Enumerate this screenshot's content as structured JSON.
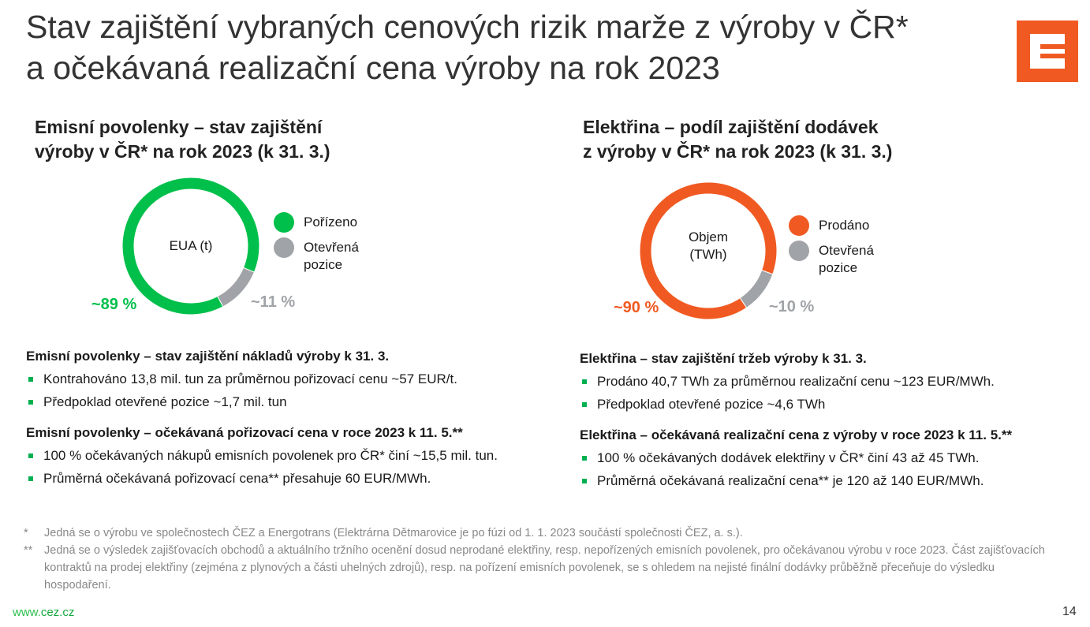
{
  "title": [
    "Stav zajištění vybraných cenových rizik marže z výroby v ČR*",
    "a očekávaná realizační cena výroby na rok 2023"
  ],
  "logo": {
    "name": "cez-logo",
    "color": "#f05a22"
  },
  "colors": {
    "green": "#00c04b",
    "orange": "#f05a22",
    "gray": "#a0a3a7"
  },
  "left": {
    "subtitle": [
      "Emisní povolenky – stav zajištění",
      "výroby v ČR* na rok 2023 (k 31. 3.)"
    ],
    "sections": [
      {
        "heading": "Emisní povolenky – stav zajištění nákladů výroby k 31. 3.",
        "bullets": [
          "Kontrahováno 13,8 mil. tun za průměrnou pořizovací cenu ~57 EUR/t.",
          "Předpoklad otevřené pozice ~1,7 mil. tun"
        ]
      },
      {
        "heading": "Emisní povolenky – očekávaná pořizovací cena v roce 2023 k 11. 5.**",
        "bullets": [
          "100 % očekávaných nákupů emisních povolenek pro ČR* činí ~15,5 mil. tun.",
          "Průměrná očekávaná pořizovací cena** přesahuje 60 EUR/MWh."
        ]
      }
    ]
  },
  "right": {
    "subtitle": [
      "Elektřina – podíl zajištění dodávek",
      "z výroby v ČR* na rok 2023 (k 31. 3.)"
    ],
    "sections": [
      {
        "heading": "Elektřina – stav zajištění tržeb výroby k 31. 3.",
        "bullets": [
          "Prodáno 40,7 TWh za průměrnou realizační cenu ~123 EUR/MWh.",
          "Předpoklad otevřené pozice ~4,6 TWh"
        ]
      },
      {
        "heading": "Elektřina – očekávaná realizační cena z výroby v roce 2023 k 11. 5.**",
        "bullets": [
          "100 % očekávaných dodávek elektřiny v ČR* činí 43 až 45 TWh.",
          "Průměrná očekávaná realizační cena** je 120 až 140 EUR/MWh."
        ]
      }
    ]
  },
  "chart_data": [
    {
      "type": "pie",
      "donut": true,
      "center_label": "EUA (t)",
      "slices": [
        {
          "name": "Pořízeno",
          "value": 89,
          "label": "~89 %",
          "color": "#00c04b"
        },
        {
          "name": "Otevřená pozice",
          "value": 11,
          "label": "~11 %",
          "color": "#a0a3a7"
        }
      ],
      "legend": "right"
    },
    {
      "type": "pie",
      "donut": true,
      "center_label": "Objem (TWh)",
      "slices": [
        {
          "name": "Prodáno",
          "value": 90,
          "label": "~90 %",
          "color": "#f05a22"
        },
        {
          "name": "Otevřená pozice",
          "value": 10,
          "label": "~10 %",
          "color": "#a0a3a7"
        }
      ],
      "legend": "right"
    }
  ],
  "footnotes": [
    {
      "mark": "*",
      "text": "Jedná se o výrobu ve společnostech ČEZ a Energotrans (Elektrárna Dětmarovice je po fúzi od 1. 1. 2023 součástí společnosti ČEZ, a. s.)."
    },
    {
      "mark": "**",
      "text": "Jedná se o výsledek zajišťovacích obchodů a aktuálního tržního ocenění dosud neprodané elektřiny, resp. nepořízených emisních povolenek, pro očekávanou výrobu v roce 2023. Část zajišťovacích kontraktů na prodej elektřiny (zejména z plynových a části uhelných zdrojů), resp. na pořízení emisních povolenek, se s ohledem na nejisté finální dodávky průběžně přeceňuje do výsledku hospodaření."
    }
  ],
  "footer": {
    "url_prefix": "www.",
    "url_domain": "cez.cz",
    "page": "14"
  }
}
